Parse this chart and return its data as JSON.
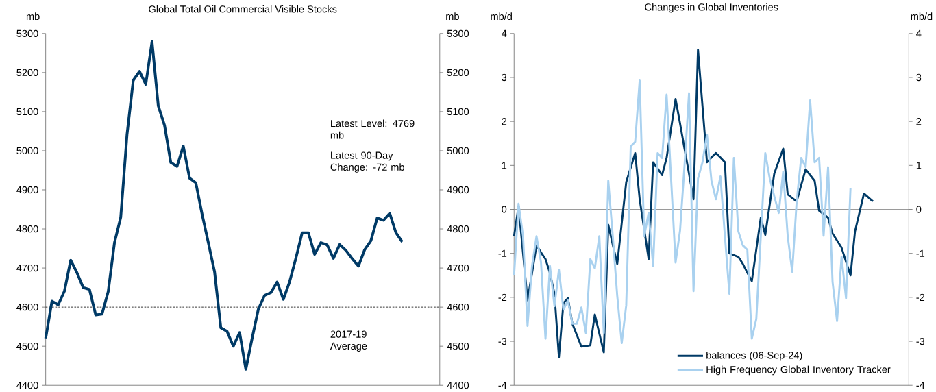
{
  "chart_data": [
    {
      "type": "line",
      "title": "Global Total Oil Commercial Visible Stocks",
      "ylabel": "mb",
      "y2label": "mb",
      "categories": [
        null,
        null,
        null,
        null,
        null,
        null,
        null,
        null,
        null,
        null,
        null,
        null,
        null,
        null,
        null,
        null,
        null,
        null,
        null,
        null,
        null,
        null,
        null,
        null,
        null,
        null,
        null,
        null,
        null,
        null,
        null,
        null,
        null,
        null,
        null,
        null,
        null,
        null,
        null,
        null,
        null,
        null,
        null,
        null,
        null,
        null,
        null,
        null,
        null,
        null,
        null,
        null,
        null,
        null,
        null,
        null,
        null,
        null,
        null,
        null,
        null,
        null,
        null,
        null
      ],
      "ylim": [
        4400,
        5300
      ],
      "yticks": [
        4400,
        4500,
        4600,
        4700,
        4800,
        4900,
        5000,
        5100,
        5200,
        5300
      ],
      "y2lim": [
        4400,
        5300
      ],
      "y2ticks": [
        4400,
        4500,
        4600,
        4700,
        4800,
        4900,
        5000,
        5100,
        5200,
        5300
      ],
      "tick_labels": "y",
      "grid": false,
      "legend": false,
      "annotations": [
        "Latest Level: 4769 mb",
        "Latest 90-Day Change: -72 mb"
      ],
      "ref_lines": [
        {
          "axis": "y",
          "value": 4600,
          "label": "2017-19 Average",
          "color": "#000000",
          "line_style": "dashed"
        }
      ],
      "series": [
        {
          "color": "#003a66",
          "values": [
            4520,
            4615,
            4606,
            4641,
            4720,
            4688,
            4650,
            4645,
            4580,
            4582,
            4640,
            4765,
            4830,
            5041,
            5180,
            5203,
            5170,
            5279,
            5115,
            5065,
            4970,
            4960,
            5012,
            4930,
            4918,
            4838,
            4765,
            4690,
            4547,
            4538,
            4500,
            4535,
            4441,
            4520,
            4595,
            4630,
            4637,
            4664,
            4620,
            4665,
            4725,
            4790,
            4790,
            4735,
            4765,
            4759,
            4725,
            4760,
            4745,
            4724,
            4705,
            4747,
            4770,
            4828,
            4822,
            4840,
            4790,
            4767,
            null,
            null,
            null,
            null,
            null,
            null
          ]
        }
      ]
    },
    {
      "type": "line",
      "title": "Changes in Global Inventories",
      "ylabel": "mb/d",
      "y2label": "mb/d",
      "categories": [
        null,
        null,
        null,
        null,
        null,
        null,
        null,
        null,
        null,
        null,
        null,
        null,
        null,
        null,
        null,
        null,
        null,
        null,
        null,
        null,
        null,
        null,
        null,
        null,
        null,
        null,
        null,
        null,
        null,
        null,
        null,
        null,
        null,
        null,
        null,
        null,
        null,
        null,
        null,
        null,
        null,
        null,
        null,
        null,
        null,
        null,
        null,
        null,
        null,
        null,
        null,
        null,
        null,
        null,
        null,
        null,
        null,
        null,
        null,
        null,
        null,
        null,
        null,
        null,
        null,
        null,
        null,
        null,
        null,
        null,
        null,
        null,
        null,
        null,
        null,
        null,
        null,
        null,
        null,
        null,
        null,
        null,
        null,
        null,
        null,
        null,
        null,
        null,
        null
      ],
      "ylim": [
        -4,
        4
      ],
      "yticks": [
        -4,
        -3,
        -2,
        -1,
        0,
        1,
        2,
        3,
        4
      ],
      "y2lim": [
        -4,
        4
      ],
      "y2ticks": [
        -4,
        -3,
        -2,
        -1,
        0,
        1,
        2,
        3,
        4
      ],
      "tick_labels": "y",
      "grid": false,
      "legend": "bottom right",
      "ref_lines": [
        {
          "axis": "y",
          "value": 0,
          "color": "#808080",
          "line_style": "solid"
        }
      ],
      "series": [
        {
          "name": "balances (06-Sep-24)",
          "color": "#003a66",
          "values": [
            -0.61,
            0.07,
            -1.0,
            -2.07,
            -1.45,
            -0.82,
            -0.98,
            -1.13,
            -1.45,
            -1.92,
            -3.36,
            -2.13,
            -2.02,
            -2.6,
            -2.86,
            -3.12,
            -3.11,
            -3.09,
            -2.39,
            -2.82,
            -3.25,
            -0.35,
            -0.8,
            -1.24,
            -0.31,
            0.62,
            0.95,
            1.28,
            0.23,
            -0.45,
            -1.13,
            1.07,
            0.93,
            0.78,
            1.17,
            1.84,
            2.51,
            1.95,
            1.38,
            0.81,
            0.23,
            3.63,
            2.35,
            1.07,
            1.18,
            1.28,
            1.18,
            1.07,
            -1.0,
            -1.04,
            -1.08,
            -1.24,
            -1.44,
            -1.63,
            -0.91,
            -0.19,
            -0.58,
            0.12,
            0.81,
            1.1,
            1.38,
            0.34,
            0.26,
            0.18,
            0.55,
            0.91,
            0.78,
            0.65,
            -0.03,
            -0.11,
            -0.19,
            -0.55,
            -0.71,
            -0.87,
            -1.19,
            -1.5,
            -0.5,
            -0.07,
            0.36,
            0.27,
            0.18,
            null,
            null,
            null,
            null,
            null,
            null,
            null,
            null
          ]
        },
        {
          "name": "High Frequency Global Inventory Tracker",
          "color": "#a9d1ef",
          "values": [
            -1.5,
            0.13,
            -0.61,
            -2.65,
            -1.29,
            -0.61,
            -1.2,
            -2.94,
            -1.29,
            -2.2,
            -1.37,
            -2.28,
            -2.07,
            -2.6,
            -2.6,
            -2.23,
            -2.81,
            -1.13,
            -1.34,
            -0.61,
            -2.81,
            0.65,
            -0.61,
            -1.97,
            -3.04,
            -2.18,
            1.43,
            1.54,
            2.93,
            -0.61,
            -0.08,
            -1.29,
            1.28,
            1.17,
            2.61,
            0.7,
            -1.21,
            -0.48,
            1.0,
            2.64,
            -1.86,
            0.7,
            1.07,
            1.7,
            0.65,
            0.23,
            0.75,
            -0.61,
            -1.92,
            1.17,
            -0.5,
            -0.82,
            -0.92,
            -2.94,
            -2.49,
            -0.61,
            1.28,
            0.7,
            0.3,
            -0.08,
            0.86,
            -0.61,
            -1.42,
            0.18,
            1.17,
            0.96,
            2.48,
            1.07,
            1.17,
            -0.6,
            0.96,
            -1.65,
            -2.54,
            -1.08,
            -2.02,
            0.49,
            null,
            null,
            null,
            null,
            null,
            null,
            null,
            null,
            null,
            null,
            null,
            null,
            null
          ]
        }
      ]
    }
  ]
}
